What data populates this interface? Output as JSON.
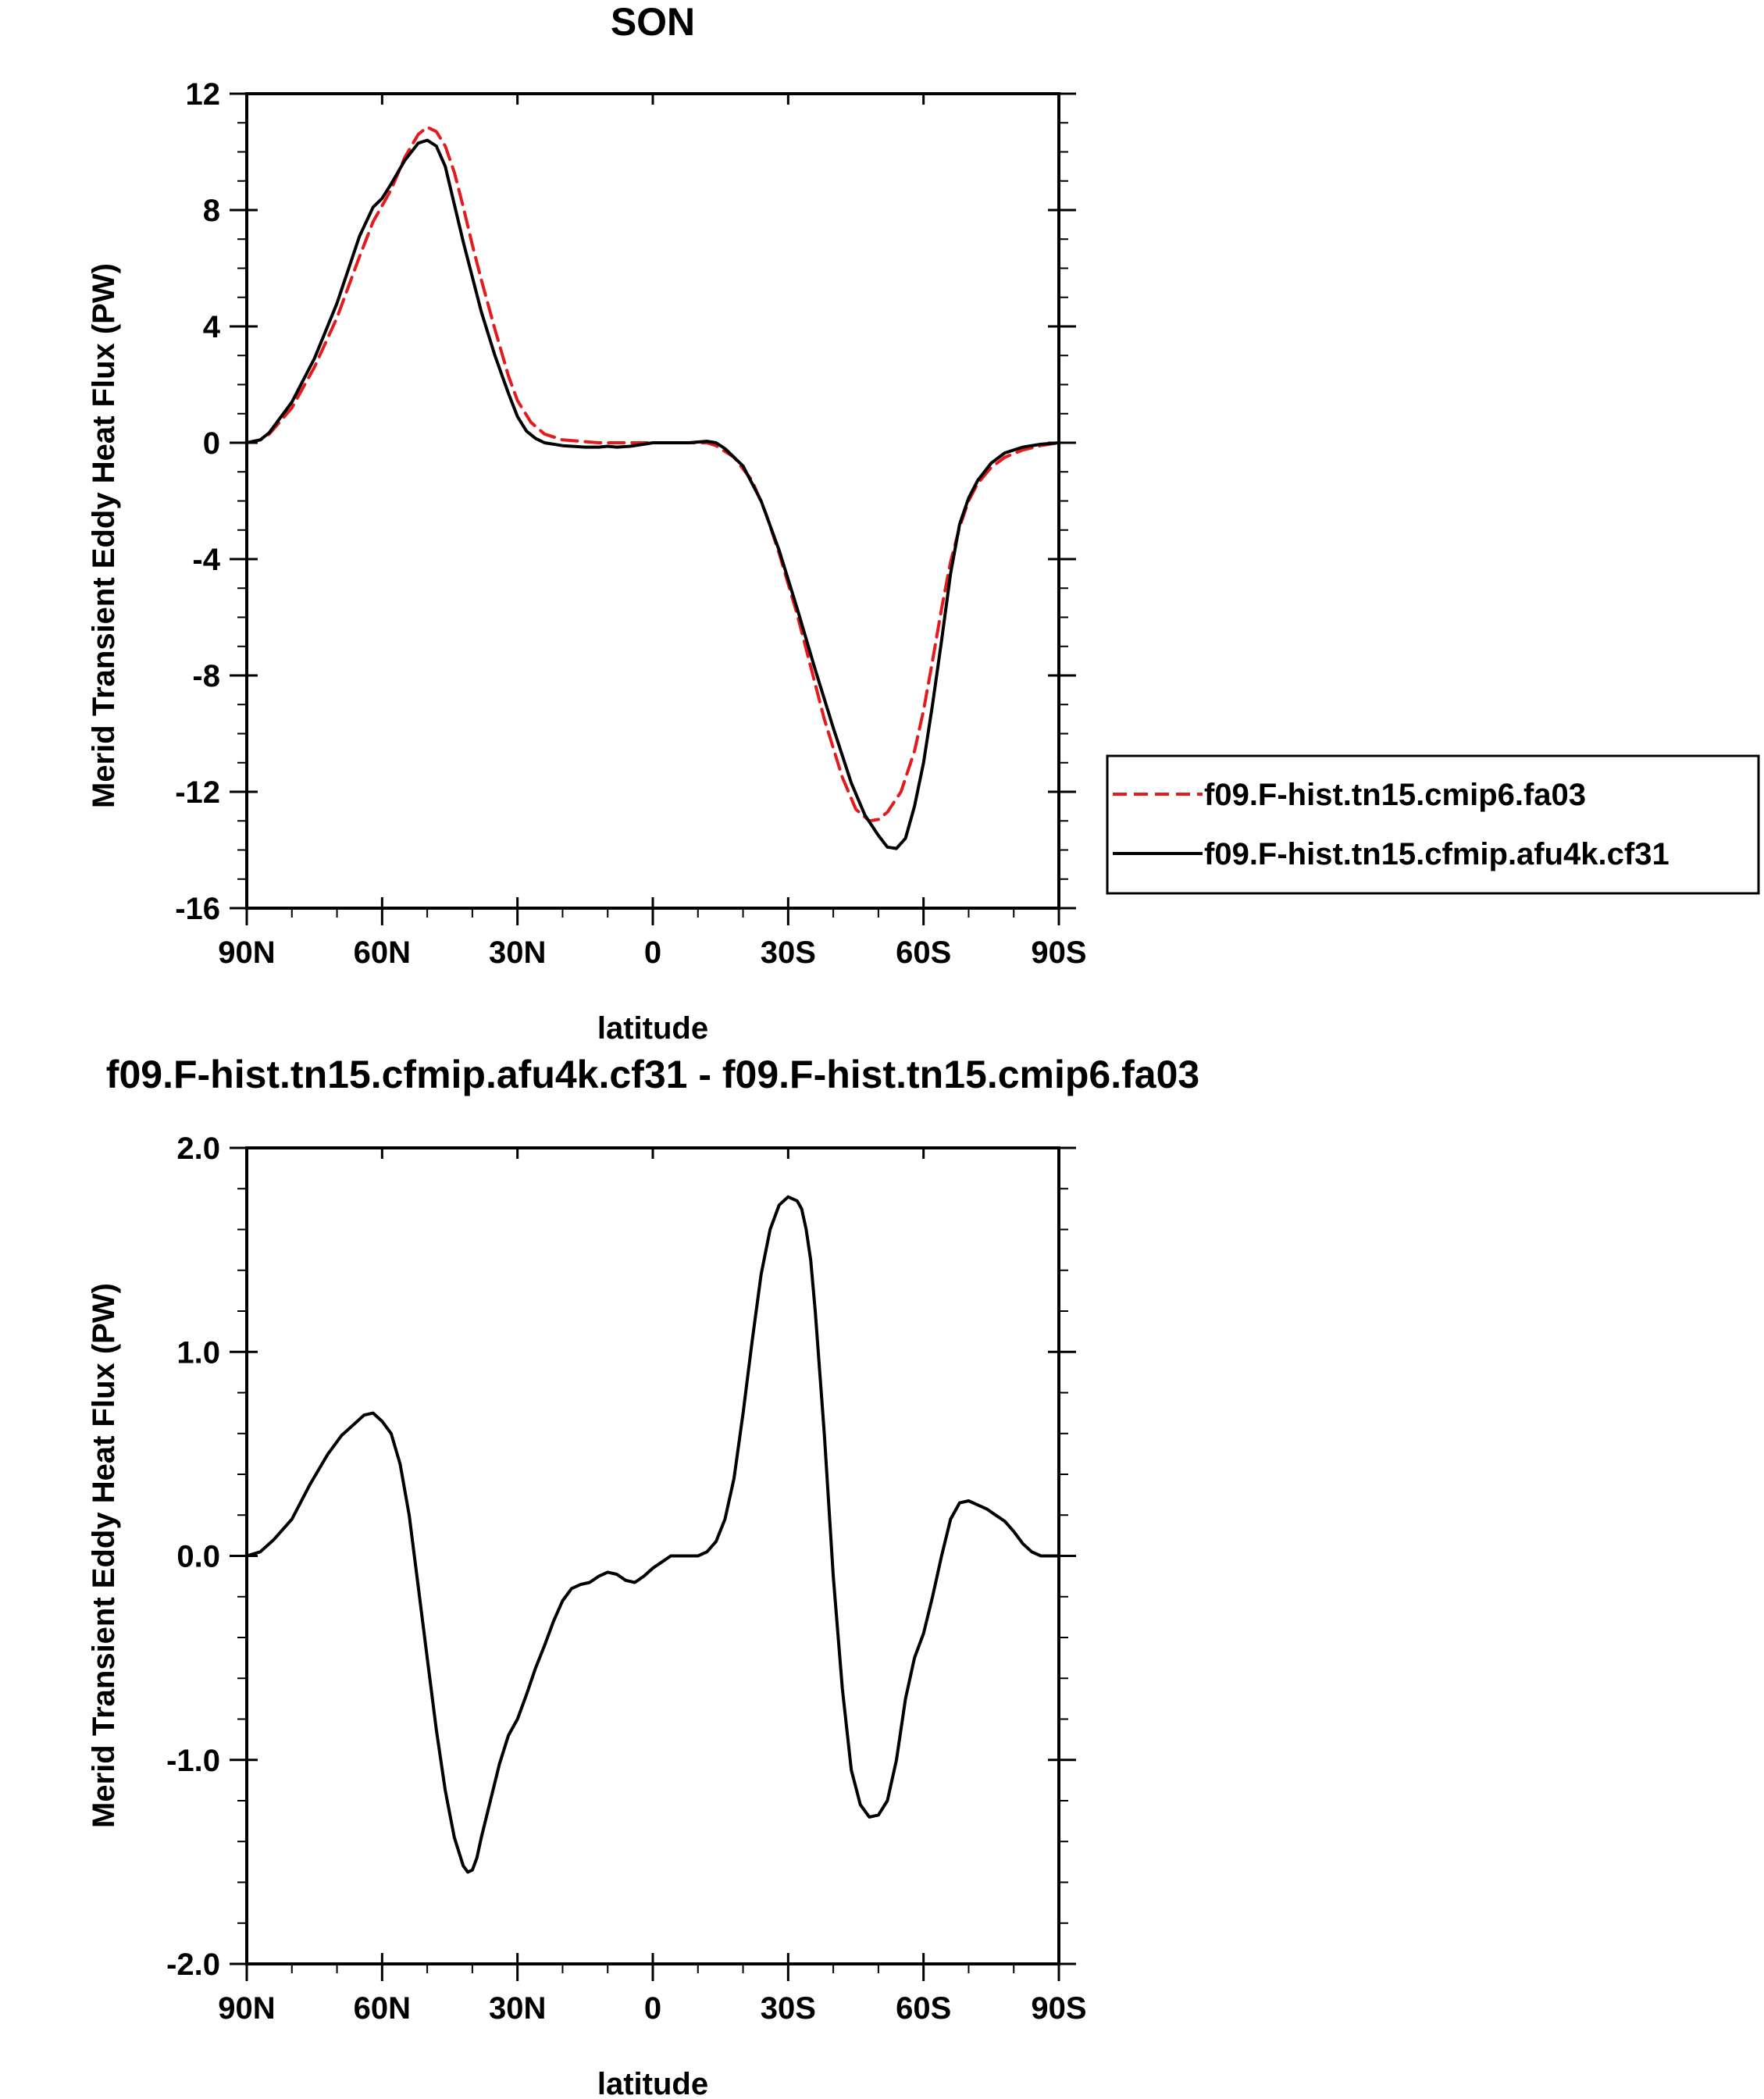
{
  "chart_data": [
    {
      "type": "line",
      "title": "SON",
      "xlabel": "latitude",
      "ylabel": "Merid Transient Eddy Heat Flux (PW)",
      "xlim": [
        90,
        -90
      ],
      "ylim": [
        -16,
        12
      ],
      "x_ticks": [
        90,
        60,
        30,
        0,
        -30,
        -60,
        -90
      ],
      "x_tick_labels": [
        "90N",
        "60N",
        "30N",
        "0",
        "30S",
        "60S",
        "90S"
      ],
      "y_ticks": [
        12,
        8,
        4,
        0,
        -4,
        -8,
        -12,
        -16
      ],
      "y_tick_labels": [
        "12",
        "8",
        "4",
        "0",
        "-4",
        "-8",
        "-12",
        "-16"
      ],
      "grid": false,
      "legend_position": "right",
      "series": [
        {
          "name": "f09.F-hist.tn15.cmip6.fa03",
          "color": "#e41a1c",
          "dash": "dashed",
          "x": [
            90,
            87,
            85,
            80,
            75,
            70,
            65,
            62,
            58,
            55,
            52,
            50,
            48,
            46,
            44,
            42,
            40,
            38,
            35,
            32,
            30,
            27,
            24,
            20,
            16,
            12,
            8,
            4,
            0,
            -4,
            -8,
            -12,
            -14,
            -18,
            -22,
            -25,
            -28,
            -32,
            -35,
            -38,
            -42,
            -45,
            -48,
            -50,
            -52,
            -55,
            -58,
            -60,
            -62,
            -64,
            -66,
            -68,
            -70,
            -72,
            -75,
            -78,
            -82,
            -86,
            -90
          ],
          "y": [
            0,
            0.1,
            0.3,
            1.2,
            2.6,
            4.3,
            6.4,
            7.6,
            8.7,
            9.8,
            10.6,
            10.85,
            10.7,
            10.2,
            9.3,
            8.1,
            6.8,
            5.6,
            3.9,
            2.3,
            1.45,
            0.7,
            0.3,
            0.1,
            0.05,
            0.0,
            0.0,
            0.0,
            0.0,
            0.0,
            0.0,
            0.0,
            -0.1,
            -0.5,
            -1.3,
            -2.4,
            -3.8,
            -5.9,
            -7.7,
            -9.5,
            -11.5,
            -12.6,
            -13.0,
            -12.95,
            -12.7,
            -12.0,
            -10.6,
            -9.2,
            -7.5,
            -5.7,
            -4.1,
            -2.9,
            -2.0,
            -1.4,
            -0.85,
            -0.5,
            -0.25,
            -0.1,
            0
          ]
        },
        {
          "name": "f09.F-hist.tn15.cfmip.afu4k.cf31",
          "color": "#000000",
          "dash": "solid",
          "x": [
            90,
            87,
            85,
            80,
            75,
            70,
            65,
            62,
            60,
            58,
            55,
            52,
            50,
            48,
            46,
            44,
            42,
            40,
            38,
            35,
            32,
            30,
            28,
            26,
            24,
            20,
            15,
            12,
            10,
            8,
            5,
            2,
            0,
            -4,
            -8,
            -12,
            -14,
            -16,
            -20,
            -24,
            -28,
            -32,
            -36,
            -40,
            -44,
            -47,
            -50,
            -52,
            -54,
            -56,
            -58,
            -60,
            -62,
            -64,
            -66,
            -68,
            -70,
            -72,
            -75,
            -78,
            -82,
            -86,
            -90
          ],
          "y": [
            0,
            0.1,
            0.35,
            1.4,
            2.9,
            4.8,
            7.1,
            8.1,
            8.4,
            8.9,
            9.7,
            10.3,
            10.4,
            10.2,
            9.5,
            8.2,
            6.9,
            5.7,
            4.5,
            3.0,
            1.7,
            0.9,
            0.4,
            0.15,
            0.0,
            -0.1,
            -0.15,
            -0.15,
            -0.12,
            -0.15,
            -0.12,
            -0.05,
            0.0,
            0.0,
            0.0,
            0.05,
            0.0,
            -0.2,
            -0.8,
            -2.0,
            -3.7,
            -5.7,
            -7.8,
            -9.8,
            -11.7,
            -12.8,
            -13.5,
            -13.9,
            -13.95,
            -13.6,
            -12.5,
            -11.0,
            -9.0,
            -6.8,
            -4.5,
            -2.8,
            -1.9,
            -1.3,
            -0.7,
            -0.35,
            -0.15,
            -0.05,
            0
          ]
        }
      ]
    },
    {
      "type": "line",
      "title": "f09.F-hist.tn15.cfmip.afu4k.cf31 - f09.F-hist.tn15.cmip6.fa03",
      "xlabel": "latitude",
      "ylabel": "Merid Transient Eddy Heat Flux (PW)",
      "xlim": [
        90,
        -90
      ],
      "ylim": [
        -2.0,
        2.0
      ],
      "x_ticks": [
        90,
        60,
        30,
        0,
        -30,
        -60,
        -90
      ],
      "x_tick_labels": [
        "90N",
        "60N",
        "30N",
        "0",
        "30S",
        "60S",
        "90S"
      ],
      "y_ticks": [
        2.0,
        1.0,
        0.0,
        -1.0,
        -2.0
      ],
      "y_tick_labels": [
        "2.0",
        "1.0",
        "0.0",
        "-1.0",
        "-2.0"
      ],
      "grid": false,
      "series": [
        {
          "color": "#000000",
          "dash": "solid",
          "x": [
            90,
            87,
            84,
            80,
            76,
            72,
            69,
            66,
            64,
            62,
            60,
            58,
            56,
            54,
            52,
            50,
            48,
            46,
            44,
            42,
            41,
            40,
            39,
            38,
            36,
            34,
            32,
            30,
            28,
            26,
            24,
            22,
            20,
            18,
            16,
            14,
            12,
            10,
            8,
            6,
            4,
            2,
            0,
            -2,
            -4,
            -6,
            -8,
            -10,
            -12,
            -14,
            -16,
            -18,
            -20,
            -22,
            -24,
            -26,
            -28,
            -30,
            -32,
            -33,
            -34,
            -35,
            -36,
            -38,
            -40,
            -42,
            -44,
            -46,
            -48,
            -50,
            -52,
            -53,
            -54,
            -55,
            -56,
            -58,
            -60,
            -62,
            -64,
            -66,
            -68,
            -70,
            -72,
            -74,
            -76,
            -78,
            -80,
            -82,
            -84,
            -86,
            -88,
            -90
          ],
          "y": [
            0,
            0.02,
            0.08,
            0.18,
            0.35,
            0.5,
            0.59,
            0.65,
            0.69,
            0.7,
            0.66,
            0.6,
            0.45,
            0.2,
            -0.15,
            -0.5,
            -0.85,
            -1.15,
            -1.38,
            -1.52,
            -1.55,
            -1.54,
            -1.48,
            -1.38,
            -1.2,
            -1.02,
            -0.88,
            -0.8,
            -0.68,
            -0.55,
            -0.44,
            -0.32,
            -0.22,
            -0.16,
            -0.14,
            -0.13,
            -0.1,
            -0.08,
            -0.09,
            -0.12,
            -0.13,
            -0.1,
            -0.06,
            -0.03,
            0.0,
            0.0,
            0.0,
            0.0,
            0.02,
            0.07,
            0.18,
            0.38,
            0.7,
            1.05,
            1.38,
            1.6,
            1.72,
            1.76,
            1.74,
            1.7,
            1.6,
            1.45,
            1.2,
            0.6,
            -0.1,
            -0.65,
            -1.05,
            -1.22,
            -1.28,
            -1.27,
            -1.2,
            -1.1,
            -1.0,
            -0.85,
            -0.7,
            -0.5,
            -0.38,
            -0.2,
            0.0,
            0.18,
            0.26,
            0.27,
            0.25,
            0.23,
            0.2,
            0.17,
            0.12,
            0.06,
            0.02,
            0.0,
            0.0,
            0
          ]
        }
      ]
    }
  ]
}
